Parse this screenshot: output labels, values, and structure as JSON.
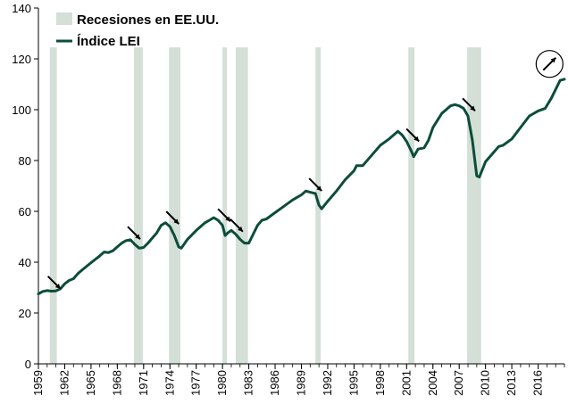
{
  "chart_data": {
    "type": "line",
    "title": "",
    "xlabel": "",
    "ylabel": "",
    "xlim": [
      1959,
      2019
    ],
    "ylim": [
      0,
      140
    ],
    "y_ticks": [
      0,
      20,
      40,
      60,
      80,
      100,
      120,
      140
    ],
    "x_ticks": [
      1959,
      1962,
      1965,
      1968,
      1971,
      1974,
      1977,
      1980,
      1983,
      1986,
      1989,
      1992,
      1995,
      1998,
      2001,
      2004,
      2007,
      2010,
      2013,
      2016
    ],
    "grid": "none",
    "legend_position": "top-left",
    "legend": [
      {
        "label": "Recesiones en EE.UU.",
        "kind": "band",
        "color": "#d3dfd7"
      },
      {
        "label": "Índice LEI",
        "kind": "line",
        "color": "#0b4d3a"
      }
    ],
    "recessions": [
      {
        "start": 1960.3,
        "end": 1961.1
      },
      {
        "start": 1969.9,
        "end": 1970.9
      },
      {
        "start": 1973.9,
        "end": 1975.2
      },
      {
        "start": 1980.0,
        "end": 1980.5
      },
      {
        "start": 1981.5,
        "end": 1982.9
      },
      {
        "start": 1990.6,
        "end": 1991.2
      },
      {
        "start": 2001.2,
        "end": 2001.9
      },
      {
        "start": 2007.9,
        "end": 2009.5
      }
    ],
    "series": [
      {
        "name": "Índice LEI",
        "color": "#0b4d3a",
        "points": [
          [
            1959.0,
            27.5
          ],
          [
            1959.5,
            28.5
          ],
          [
            1960.0,
            28.8
          ],
          [
            1960.5,
            28.6
          ],
          [
            1961.0,
            28.7
          ],
          [
            1961.5,
            29.5
          ],
          [
            1962.0,
            31.5
          ],
          [
            1962.5,
            32.8
          ],
          [
            1963.0,
            33.5
          ],
          [
            1963.5,
            35.5
          ],
          [
            1964.0,
            37.0
          ],
          [
            1965.0,
            39.8
          ],
          [
            1966.0,
            42.5
          ],
          [
            1966.5,
            44.0
          ],
          [
            1967.0,
            43.8
          ],
          [
            1967.5,
            44.5
          ],
          [
            1968.0,
            46.0
          ],
          [
            1968.5,
            47.5
          ],
          [
            1969.0,
            48.5
          ],
          [
            1969.5,
            48.8
          ],
          [
            1970.0,
            47.0
          ],
          [
            1970.5,
            45.5
          ],
          [
            1971.0,
            45.8
          ],
          [
            1971.5,
            47.5
          ],
          [
            1972.0,
            49.5
          ],
          [
            1972.5,
            51.5
          ],
          [
            1973.0,
            54.5
          ],
          [
            1973.5,
            55.5
          ],
          [
            1974.0,
            54.0
          ],
          [
            1974.5,
            50.5
          ],
          [
            1975.0,
            46.0
          ],
          [
            1975.3,
            45.5
          ],
          [
            1976.0,
            49.0
          ],
          [
            1977.0,
            52.5
          ],
          [
            1978.0,
            55.5
          ],
          [
            1978.5,
            56.5
          ],
          [
            1979.0,
            57.5
          ],
          [
            1979.5,
            56.5
          ],
          [
            1980.0,
            54.5
          ],
          [
            1980.3,
            50.5
          ],
          [
            1980.6,
            51.5
          ],
          [
            1981.0,
            52.5
          ],
          [
            1981.5,
            51.0
          ],
          [
            1982.0,
            49.0
          ],
          [
            1982.5,
            47.5
          ],
          [
            1983.0,
            47.5
          ],
          [
            1983.5,
            51.0
          ],
          [
            1984.0,
            54.5
          ],
          [
            1984.5,
            56.5
          ],
          [
            1985.0,
            57.0
          ],
          [
            1986.0,
            59.5
          ],
          [
            1987.0,
            62.0
          ],
          [
            1988.0,
            64.5
          ],
          [
            1989.0,
            66.5
          ],
          [
            1989.5,
            68.0
          ],
          [
            1990.0,
            67.5
          ],
          [
            1990.6,
            67.0
          ],
          [
            1991.0,
            62.5
          ],
          [
            1991.3,
            61.0
          ],
          [
            1992.0,
            64.0
          ],
          [
            1993.0,
            68.0
          ],
          [
            1994.0,
            72.5
          ],
          [
            1995.0,
            76.0
          ],
          [
            1995.3,
            78.0
          ],
          [
            1996.0,
            78.0
          ],
          [
            1997.0,
            82.0
          ],
          [
            1998.0,
            86.0
          ],
          [
            1999.0,
            88.5
          ],
          [
            2000.0,
            91.5
          ],
          [
            2000.5,
            90.0
          ],
          [
            2001.0,
            87.5
          ],
          [
            2001.5,
            84.0
          ],
          [
            2001.8,
            81.5
          ],
          [
            2002.3,
            84.5
          ],
          [
            2003.0,
            85.0
          ],
          [
            2003.5,
            88.0
          ],
          [
            2004.0,
            93.0
          ],
          [
            2005.0,
            98.5
          ],
          [
            2006.0,
            101.5
          ],
          [
            2006.5,
            102.0
          ],
          [
            2007.0,
            101.5
          ],
          [
            2007.5,
            100.5
          ],
          [
            2008.0,
            97.5
          ],
          [
            2008.5,
            88.0
          ],
          [
            2009.0,
            74.0
          ],
          [
            2009.3,
            73.5
          ],
          [
            2010.0,
            79.5
          ],
          [
            2011.0,
            83.5
          ],
          [
            2011.5,
            85.5
          ],
          [
            2012.0,
            86.0
          ],
          [
            2013.0,
            88.5
          ],
          [
            2014.0,
            93.0
          ],
          [
            2015.0,
            97.5
          ],
          [
            2016.0,
            99.5
          ],
          [
            2016.8,
            100.5
          ],
          [
            2017.5,
            104.5
          ],
          [
            2018.0,
            108.0
          ],
          [
            2018.5,
            111.5
          ],
          [
            2019.0,
            112.0
          ]
        ]
      }
    ],
    "annotations": [
      {
        "type": "arrow",
        "direction": "down-right",
        "x": 1960.8,
        "y": 32
      },
      {
        "type": "arrow",
        "direction": "down-right",
        "x": 1969.9,
        "y": 51.5
      },
      {
        "type": "arrow",
        "direction": "down-right",
        "x": 1974.3,
        "y": 57.5
      },
      {
        "type": "arrow",
        "direction": "down-right",
        "x": 1980.2,
        "y": 58.5
      },
      {
        "type": "arrow",
        "direction": "down-right",
        "x": 1981.6,
        "y": 54.5
      },
      {
        "type": "arrow",
        "direction": "down-right",
        "x": 1990.6,
        "y": 70.5
      },
      {
        "type": "arrow",
        "direction": "down-right",
        "x": 2001.7,
        "y": 90
      },
      {
        "type": "arrow",
        "direction": "down-right",
        "x": 2008.1,
        "y": 102
      },
      {
        "type": "arrow",
        "direction": "up-right",
        "x": 2017.3,
        "y": 118,
        "circled": true
      }
    ]
  }
}
